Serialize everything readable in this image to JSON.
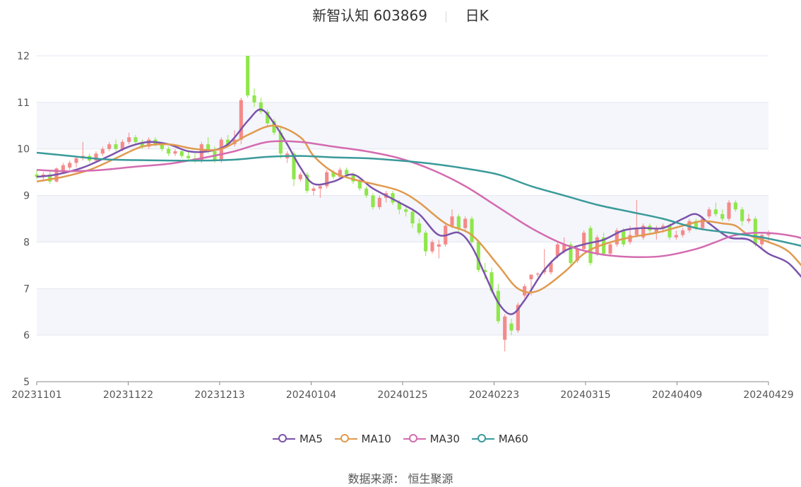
{
  "title": {
    "stock": "新智认知 603869",
    "period": "日K"
  },
  "source": "数据来源： 恒生聚源",
  "colors": {
    "up": "#f48a8a",
    "down": "#8fe64a",
    "MA5": "#7b52ab",
    "MA10": "#e09a4f",
    "MA30": "#d46bb0",
    "MA60": "#3a9a9a"
  },
  "chart_data": {
    "type": "candlestick",
    "ylim": [
      5,
      12
    ],
    "yticks": [
      "5",
      "6",
      "7",
      "8",
      "9",
      "10",
      "11",
      "12"
    ],
    "xticks": [
      "20231101",
      "20231122",
      "20231213",
      "20240104",
      "20240125",
      "20240223",
      "20240315",
      "20240409",
      "20240429"
    ],
    "grid": true,
    "legend_position": "bottom",
    "series": [
      {
        "name": "MA5",
        "key": "MA5",
        "values": [
          [
            0,
            9.4
          ],
          [
            3,
            9.45
          ],
          [
            7,
            9.6
          ],
          [
            11,
            9.85
          ],
          [
            14,
            10.05
          ],
          [
            17,
            10.15
          ],
          [
            20,
            10.1
          ],
          [
            23,
            9.95
          ],
          [
            26,
            9.95
          ],
          [
            29,
            10.1
          ],
          [
            32,
            10.6
          ],
          [
            34,
            10.85
          ],
          [
            36,
            10.55
          ],
          [
            38,
            10.1
          ],
          [
            40,
            9.6
          ],
          [
            42,
            9.25
          ],
          [
            45,
            9.3
          ],
          [
            48,
            9.45
          ],
          [
            51,
            9.15
          ],
          [
            55,
            8.85
          ],
          [
            58,
            8.6
          ],
          [
            61,
            8.15
          ],
          [
            64,
            8.2
          ],
          [
            66,
            7.9
          ],
          [
            68,
            7.3
          ],
          [
            70,
            6.7
          ],
          [
            72,
            6.45
          ],
          [
            74,
            6.75
          ],
          [
            77,
            7.4
          ],
          [
            80,
            7.8
          ],
          [
            83,
            7.95
          ],
          [
            86,
            8.05
          ],
          [
            89,
            8.25
          ],
          [
            92,
            8.3
          ],
          [
            95,
            8.3
          ],
          [
            98,
            8.5
          ],
          [
            100,
            8.6
          ],
          [
            102,
            8.4
          ],
          [
            105,
            8.1
          ],
          [
            108,
            8.05
          ],
          [
            111,
            7.75
          ],
          [
            114,
            7.55
          ],
          [
            117,
            7.1
          ],
          [
            119,
            6.95
          ],
          [
            121,
            7.05
          ],
          [
            123,
            7.15
          ],
          [
            124,
            7.3
          ]
        ]
      },
      {
        "name": "MA10",
        "key": "MA10",
        "values": [
          [
            0,
            9.3
          ],
          [
            4,
            9.4
          ],
          [
            8,
            9.55
          ],
          [
            12,
            9.8
          ],
          [
            16,
            10.05
          ],
          [
            20,
            10.1
          ],
          [
            24,
            10.0
          ],
          [
            28,
            10.0
          ],
          [
            32,
            10.3
          ],
          [
            36,
            10.5
          ],
          [
            40,
            10.25
          ],
          [
            42,
            9.85
          ],
          [
            45,
            9.5
          ],
          [
            48,
            9.35
          ],
          [
            51,
            9.25
          ],
          [
            55,
            9.1
          ],
          [
            58,
            8.85
          ],
          [
            62,
            8.4
          ],
          [
            66,
            8.15
          ],
          [
            70,
            7.5
          ],
          [
            73,
            7.0
          ],
          [
            76,
            6.95
          ],
          [
            80,
            7.35
          ],
          [
            83,
            7.75
          ],
          [
            86,
            7.95
          ],
          [
            90,
            8.1
          ],
          [
            94,
            8.2
          ],
          [
            98,
            8.35
          ],
          [
            101,
            8.45
          ],
          [
            104,
            8.4
          ],
          [
            106,
            8.35
          ],
          [
            108,
            8.15
          ],
          [
            111,
            8.0
          ],
          [
            114,
            7.8
          ],
          [
            117,
            7.35
          ],
          [
            120,
            7.1
          ],
          [
            122,
            7.05
          ],
          [
            124,
            7.1
          ]
        ]
      },
      {
        "name": "MA30",
        "key": "MA30",
        "values": [
          [
            0,
            9.55
          ],
          [
            5,
            9.52
          ],
          [
            10,
            9.55
          ],
          [
            15,
            9.62
          ],
          [
            20,
            9.68
          ],
          [
            25,
            9.8
          ],
          [
            30,
            9.95
          ],
          [
            35,
            10.15
          ],
          [
            40,
            10.15
          ],
          [
            45,
            10.05
          ],
          [
            50,
            9.95
          ],
          [
            55,
            9.8
          ],
          [
            60,
            9.55
          ],
          [
            65,
            9.2
          ],
          [
            70,
            8.75
          ],
          [
            75,
            8.3
          ],
          [
            80,
            7.95
          ],
          [
            85,
            7.75
          ],
          [
            90,
            7.68
          ],
          [
            95,
            7.7
          ],
          [
            100,
            7.85
          ],
          [
            103,
            8.0
          ],
          [
            106,
            8.15
          ],
          [
            110,
            8.2
          ],
          [
            115,
            8.12
          ],
          [
            120,
            7.9
          ],
          [
            124,
            7.75
          ]
        ]
      },
      {
        "name": "MA60",
        "key": "MA60",
        "values": [
          [
            0,
            9.92
          ],
          [
            5,
            9.85
          ],
          [
            10,
            9.78
          ],
          [
            15,
            9.76
          ],
          [
            20,
            9.75
          ],
          [
            25,
            9.75
          ],
          [
            30,
            9.77
          ],
          [
            35,
            9.83
          ],
          [
            40,
            9.85
          ],
          [
            45,
            9.82
          ],
          [
            50,
            9.8
          ],
          [
            55,
            9.75
          ],
          [
            60,
            9.68
          ],
          [
            65,
            9.58
          ],
          [
            70,
            9.45
          ],
          [
            75,
            9.2
          ],
          [
            80,
            9.0
          ],
          [
            85,
            8.8
          ],
          [
            90,
            8.65
          ],
          [
            95,
            8.5
          ],
          [
            100,
            8.3
          ],
          [
            105,
            8.2
          ],
          [
            110,
            8.1
          ],
          [
            115,
            7.95
          ],
          [
            120,
            7.78
          ],
          [
            124,
            7.72
          ]
        ]
      }
    ],
    "ohlc": [
      [
        9.45,
        9.55,
        9.35,
        9.4
      ],
      [
        9.4,
        9.5,
        9.3,
        9.45
      ],
      [
        9.45,
        9.55,
        9.25,
        9.3
      ],
      [
        9.3,
        9.6,
        9.28,
        9.58
      ],
      [
        9.5,
        9.7,
        9.48,
        9.65
      ],
      [
        9.6,
        9.75,
        9.55,
        9.7
      ],
      [
        9.7,
        9.85,
        9.6,
        9.8
      ],
      [
        9.8,
        10.15,
        9.75,
        9.85
      ],
      [
        9.85,
        9.9,
        9.7,
        9.75
      ],
      [
        9.75,
        9.95,
        9.7,
        9.9
      ],
      [
        9.9,
        10.05,
        9.85,
        10.0
      ],
      [
        10.0,
        10.15,
        9.95,
        10.1
      ],
      [
        10.1,
        10.2,
        9.95,
        10.0
      ],
      [
        10.0,
        10.2,
        9.95,
        10.15
      ],
      [
        10.15,
        10.35,
        10.1,
        10.25
      ],
      [
        10.25,
        10.3,
        10.1,
        10.15
      ],
      [
        10.15,
        10.2,
        10.0,
        10.05
      ],
      [
        10.05,
        10.25,
        10.0,
        10.2
      ],
      [
        10.2,
        10.25,
        10.05,
        10.1
      ],
      [
        10.1,
        10.15,
        9.95,
        10.0
      ],
      [
        10.0,
        10.05,
        9.85,
        9.9
      ],
      [
        9.9,
        10.0,
        9.85,
        9.95
      ],
      [
        9.95,
        10.0,
        9.8,
        9.85
      ],
      [
        9.85,
        9.95,
        9.75,
        9.8
      ],
      [
        9.8,
        9.9,
        9.7,
        9.75
      ],
      [
        9.75,
        10.15,
        9.7,
        10.1
      ],
      [
        10.1,
        10.25,
        9.9,
        9.95
      ],
      [
        9.95,
        10.05,
        9.7,
        9.75
      ],
      [
        9.75,
        10.25,
        9.7,
        10.2
      ],
      [
        10.2,
        10.3,
        10.05,
        10.1
      ],
      [
        10.1,
        10.4,
        10.05,
        10.2
      ],
      [
        10.2,
        11.1,
        10.1,
        11.05
      ],
      [
        12.0,
        12.0,
        11.1,
        11.15
      ],
      [
        11.15,
        11.3,
        10.9,
        11.0
      ],
      [
        11.0,
        11.1,
        10.75,
        10.8
      ],
      [
        10.8,
        10.85,
        10.5,
        10.55
      ],
      [
        10.6,
        10.65,
        10.3,
        10.35
      ],
      [
        10.35,
        10.5,
        9.8,
        9.9
      ],
      [
        9.8,
        9.95,
        9.7,
        9.9
      ],
      [
        9.9,
        9.95,
        9.2,
        9.35
      ],
      [
        9.35,
        9.5,
        9.3,
        9.45
      ],
      [
        9.45,
        9.5,
        9.05,
        9.1
      ],
      [
        9.1,
        9.2,
        9.0,
        9.15
      ],
      [
        9.15,
        9.25,
        8.95,
        9.2
      ],
      [
        9.2,
        9.55,
        9.15,
        9.5
      ],
      [
        9.5,
        9.55,
        9.35,
        9.4
      ],
      [
        9.4,
        9.6,
        9.35,
        9.55
      ],
      [
        9.55,
        9.6,
        9.4,
        9.45
      ],
      [
        9.45,
        9.5,
        9.25,
        9.3
      ],
      [
        9.3,
        9.35,
        9.1,
        9.15
      ],
      [
        9.15,
        9.2,
        8.95,
        9.0
      ],
      [
        9.0,
        9.05,
        8.7,
        8.75
      ],
      [
        8.75,
        9.0,
        8.7,
        8.95
      ],
      [
        8.95,
        9.1,
        8.85,
        9.05
      ],
      [
        9.05,
        9.1,
        8.8,
        8.85
      ],
      [
        8.85,
        8.9,
        8.6,
        8.7
      ],
      [
        8.7,
        8.75,
        8.55,
        8.65
      ],
      [
        8.65,
        8.7,
        8.3,
        8.4
      ],
      [
        8.4,
        8.5,
        8.15,
        8.2
      ],
      [
        8.2,
        8.25,
        7.7,
        7.8
      ],
      [
        7.8,
        8.05,
        7.75,
        8.0
      ],
      [
        7.9,
        8.05,
        7.65,
        7.95
      ],
      [
        7.95,
        8.4,
        7.9,
        8.35
      ],
      [
        8.35,
        8.7,
        8.3,
        8.55
      ],
      [
        8.55,
        8.6,
        8.2,
        8.3
      ],
      [
        8.3,
        8.55,
        8.25,
        8.5
      ],
      [
        8.5,
        8.55,
        7.95,
        8.0
      ],
      [
        8.0,
        8.05,
        7.35,
        7.4
      ],
      [
        7.4,
        7.55,
        7.2,
        7.35
      ],
      [
        7.35,
        7.45,
        6.9,
        6.95
      ],
      [
        6.95,
        7.1,
        6.25,
        6.3
      ],
      [
        5.9,
        6.45,
        5.65,
        6.4
      ],
      [
        6.25,
        6.35,
        6.0,
        6.1
      ],
      [
        6.1,
        6.7,
        6.05,
        6.65
      ],
      [
        6.85,
        7.1,
        6.8,
        7.05
      ],
      [
        7.2,
        7.3,
        6.85,
        7.3
      ],
      [
        7.3,
        7.35,
        7.25,
        7.32
      ],
      [
        7.35,
        7.85,
        7.3,
        7.4
      ],
      [
        7.35,
        7.6,
        7.3,
        7.55
      ],
      [
        7.7,
        8.0,
        7.65,
        7.95
      ],
      [
        7.8,
        8.1,
        7.75,
        7.95
      ],
      [
        7.95,
        8.0,
        7.5,
        7.55
      ],
      [
        7.6,
        7.9,
        7.55,
        7.85
      ],
      [
        7.85,
        8.25,
        7.8,
        8.2
      ],
      [
        8.3,
        8.35,
        7.5,
        7.55
      ],
      [
        7.75,
        8.15,
        7.7,
        8.1
      ],
      [
        8.1,
        8.2,
        7.7,
        7.75
      ],
      [
        7.75,
        8.0,
        7.7,
        7.95
      ],
      [
        7.95,
        8.3,
        7.9,
        8.25
      ],
      [
        8.25,
        8.3,
        7.9,
        7.95
      ],
      [
        8.0,
        8.35,
        7.95,
        8.15
      ],
      [
        8.15,
        8.9,
        8.1,
        8.3
      ],
      [
        8.1,
        8.4,
        8.05,
        8.35
      ],
      [
        8.35,
        8.4,
        8.15,
        8.25
      ],
      [
        8.2,
        8.35,
        8.05,
        8.3
      ],
      [
        8.3,
        8.4,
        8.2,
        8.35
      ],
      [
        8.35,
        8.4,
        8.05,
        8.1
      ],
      [
        8.1,
        8.25,
        8.05,
        8.15
      ],
      [
        8.15,
        8.3,
        8.1,
        8.25
      ],
      [
        8.25,
        8.5,
        8.2,
        8.45
      ],
      [
        8.45,
        8.5,
        8.25,
        8.3
      ],
      [
        8.3,
        8.55,
        8.25,
        8.5
      ],
      [
        8.55,
        8.75,
        8.5,
        8.7
      ],
      [
        8.7,
        8.85,
        8.55,
        8.6
      ],
      [
        8.6,
        8.7,
        8.45,
        8.5
      ],
      [
        8.5,
        8.9,
        8.45,
        8.85
      ],
      [
        8.85,
        8.9,
        8.65,
        8.7
      ],
      [
        8.7,
        8.75,
        8.35,
        8.45
      ],
      [
        8.45,
        8.6,
        8.4,
        8.5
      ],
      [
        8.5,
        8.55,
        7.9,
        7.95
      ],
      [
        7.95,
        8.2,
        7.85,
        8.15
      ],
      [
        8.15,
        8.25,
        8.0,
        8.2
      ]
    ]
  }
}
